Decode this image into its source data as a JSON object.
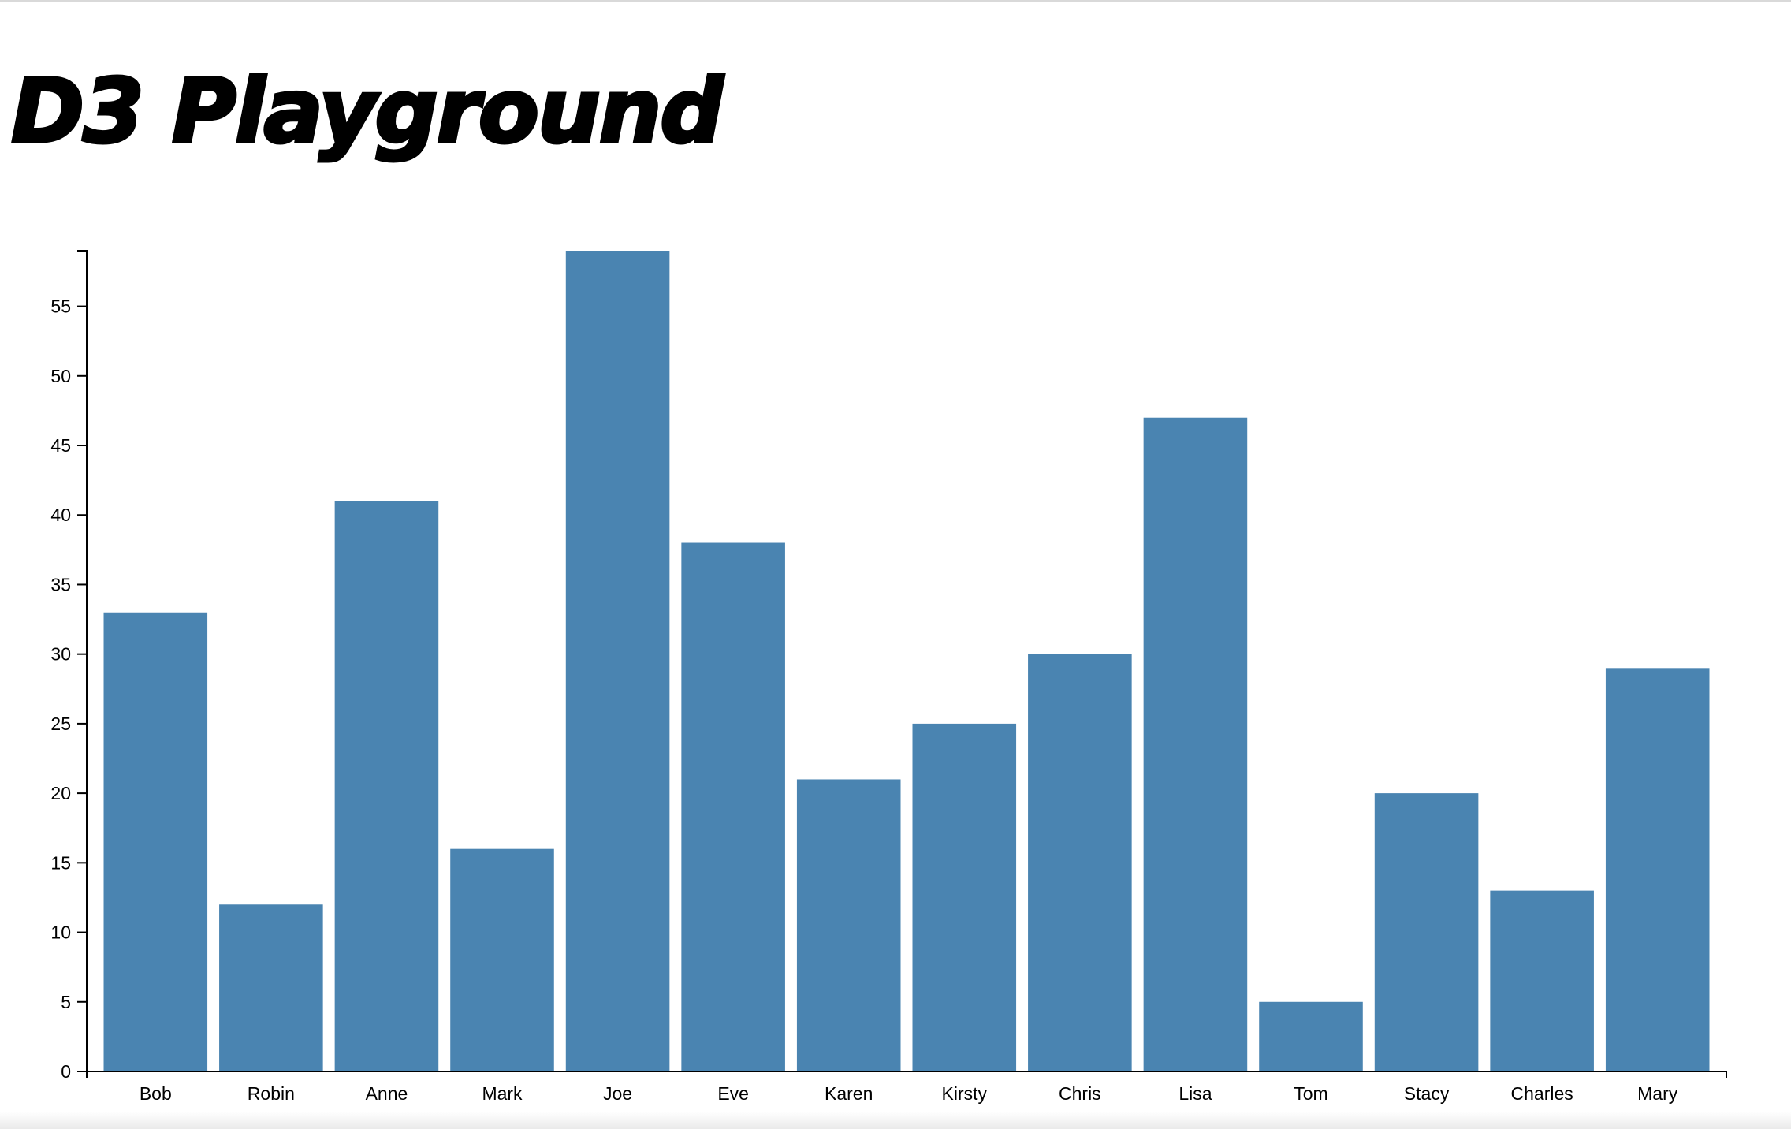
{
  "page": {
    "title": "D3 Playground"
  },
  "colors": {
    "bar": "#4a84b1",
    "axis": "#000000",
    "background": "#ffffff"
  },
  "chart_data": {
    "type": "bar",
    "categories": [
      "Bob",
      "Robin",
      "Anne",
      "Mark",
      "Joe",
      "Eve",
      "Karen",
      "Kirsty",
      "Chris",
      "Lisa",
      "Tom",
      "Stacy",
      "Charles",
      "Mary"
    ],
    "values": [
      33,
      12,
      41,
      16,
      59,
      38,
      21,
      25,
      30,
      47,
      5,
      20,
      13,
      29
    ],
    "title": "",
    "xlabel": "",
    "ylabel": "",
    "ylim": [
      0,
      59
    ],
    "yticks": [
      0,
      5,
      10,
      15,
      20,
      25,
      30,
      35,
      40,
      45,
      50,
      55
    ],
    "grid": false,
    "legend": "none"
  }
}
